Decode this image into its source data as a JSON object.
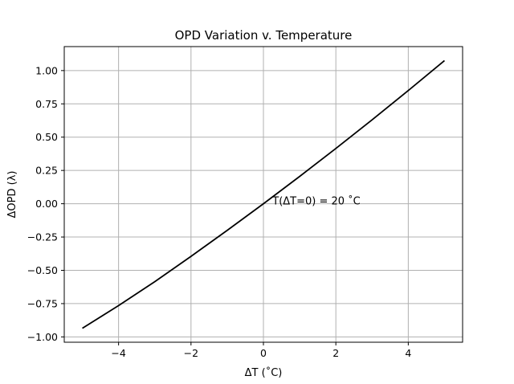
{
  "chart_data": {
    "type": "line",
    "title": "OPD Variation v. Temperature",
    "xlabel": "ΔT (˚C)",
    "ylabel": "ΔOPD (λ)",
    "xlim": [
      -5.5,
      5.5
    ],
    "ylim": [
      -1.04,
      1.18
    ],
    "x_ticks": [
      -4,
      -2,
      0,
      2,
      4
    ],
    "x_tick_labels": [
      "−4",
      "−2",
      "0",
      "2",
      "4"
    ],
    "y_ticks": [
      -1.0,
      -0.75,
      -0.5,
      -0.25,
      0.0,
      0.25,
      0.5,
      0.75,
      1.0
    ],
    "y_tick_labels": [
      "−1.00",
      "−0.75",
      "−0.50",
      "−0.25",
      "0.00",
      "0.25",
      "0.50",
      "0.75",
      "1.00"
    ],
    "grid": true,
    "series": [
      {
        "color": "#000000",
        "x": [
          -5,
          -4,
          -3,
          -2,
          -1,
          0,
          1,
          2,
          3,
          4,
          5
        ],
        "y": [
          -0.935,
          -0.765,
          -0.585,
          -0.395,
          -0.2,
          0.0,
          0.205,
          0.415,
          0.63,
          0.85,
          1.075
        ]
      }
    ],
    "annotations": [
      {
        "text": "T(ΔT=0) = 20 ˚C",
        "x": 0.25,
        "y": 0.0
      }
    ]
  }
}
